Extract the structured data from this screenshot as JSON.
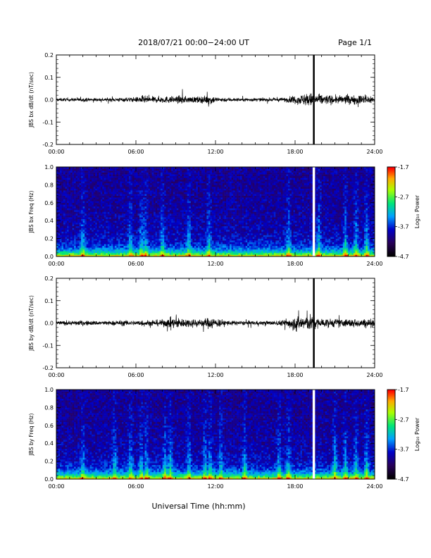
{
  "header": {
    "title": "2018/07/21  00:00−24:00 UT",
    "page": "Page 1/1"
  },
  "xaxis": {
    "label": "Universal Time (hh:mm)",
    "ticks": [
      "00:00",
      "06:00",
      "12:00",
      "18:00",
      "24:00"
    ],
    "range_hours": [
      0,
      24
    ]
  },
  "colors": {
    "trace": "#000000",
    "data_gap": "#ffffff"
  },
  "chart_data": [
    {
      "type": "line",
      "id": "bx-dbdt",
      "ylabel": "JBS bx dB/dt (nT/sec)",
      "ylim": [
        -0.2,
        0.2
      ],
      "yticks": [
        "-0.2",
        "-0.1",
        "0.0",
        "0.1",
        "0.2"
      ],
      "x_hours": [
        0,
        1,
        2,
        3,
        4,
        5,
        6,
        6.5,
        7,
        8,
        9,
        9.5,
        10,
        11,
        11.7,
        12,
        13,
        14,
        15,
        16,
        17,
        17.5,
        18,
        18.5,
        19.2,
        19.5,
        20,
        21,
        22,
        23,
        24
      ],
      "amplitude": [
        0.012,
        0.012,
        0.014,
        0.012,
        0.013,
        0.015,
        0.018,
        0.03,
        0.022,
        0.025,
        0.025,
        0.03,
        0.022,
        0.025,
        0.035,
        0.02,
        0.015,
        0.012,
        0.012,
        0.012,
        0.015,
        0.02,
        0.03,
        0.04,
        0.05,
        0.035,
        0.04,
        0.03,
        0.032,
        0.035,
        0.03
      ],
      "spike_hour": 19.4,
      "spike_range": [
        -0.2,
        0.2
      ]
    },
    {
      "type": "heatmap",
      "id": "bx-spectrogram",
      "ylabel": "JBS bx Freq (Hz)",
      "ylim": [
        0.0,
        1.0
      ],
      "yticks": [
        "0.0",
        "0.2",
        "0.4",
        "0.6",
        "0.8",
        "1.0"
      ],
      "colorbar": {
        "label": "Log₁₀ Power",
        "range": [
          -4.7,
          -1.7
        ],
        "ticks": [
          "-1.7",
          "-2.7",
          "-3.7",
          "-4.7"
        ]
      },
      "activity_hours": [
        2,
        5.6,
        6.4,
        6.7,
        8,
        10,
        11.5,
        17.5,
        19.8,
        21.8,
        22.6,
        23.4
      ],
      "gap_hours": [
        19.4
      ]
    },
    {
      "type": "line",
      "id": "by-dbdt",
      "ylabel": "JBS by dB/dt (nT/sec)",
      "ylim": [
        -0.2,
        0.2
      ],
      "yticks": [
        "-0.2",
        "-0.1",
        "0.0",
        "0.1",
        "0.2"
      ],
      "x_hours": [
        0,
        1,
        2,
        3,
        4,
        5,
        6,
        6.5,
        7,
        8,
        8.5,
        9,
        10,
        11,
        11.7,
        12,
        13,
        14,
        15,
        16,
        17,
        17.5,
        18,
        18.5,
        19.2,
        19.5,
        20,
        21,
        22,
        23,
        24
      ],
      "amplitude": [
        0.015,
        0.016,
        0.018,
        0.016,
        0.015,
        0.02,
        0.018,
        0.025,
        0.02,
        0.025,
        0.035,
        0.04,
        0.03,
        0.03,
        0.045,
        0.035,
        0.018,
        0.015,
        0.015,
        0.015,
        0.02,
        0.04,
        0.05,
        0.055,
        0.06,
        0.04,
        0.035,
        0.03,
        0.03,
        0.03,
        0.03
      ],
      "spike_hour": 19.4,
      "spike_range": [
        -0.2,
        0.2
      ]
    },
    {
      "type": "heatmap",
      "id": "by-spectrogram",
      "ylabel": "JBS by Freq (Hz)",
      "ylim": [
        0.0,
        1.0
      ],
      "yticks": [
        "0.0",
        "0.2",
        "0.4",
        "0.6",
        "0.8",
        "1.0"
      ],
      "colorbar": {
        "label": "Log₁₀ Power",
        "range": [
          -4.7,
          -1.7
        ],
        "ticks": [
          "-1.7",
          "-2.7",
          "-3.7",
          "-4.7"
        ]
      },
      "activity_hours": [
        2,
        4.4,
        5.6,
        6.4,
        6.8,
        8.2,
        8.6,
        10,
        11.2,
        11.6,
        12.4,
        14.2,
        16.8,
        17.5,
        21,
        21.8,
        22.6,
        23.4
      ],
      "gap_hours": [
        19.4
      ]
    }
  ]
}
